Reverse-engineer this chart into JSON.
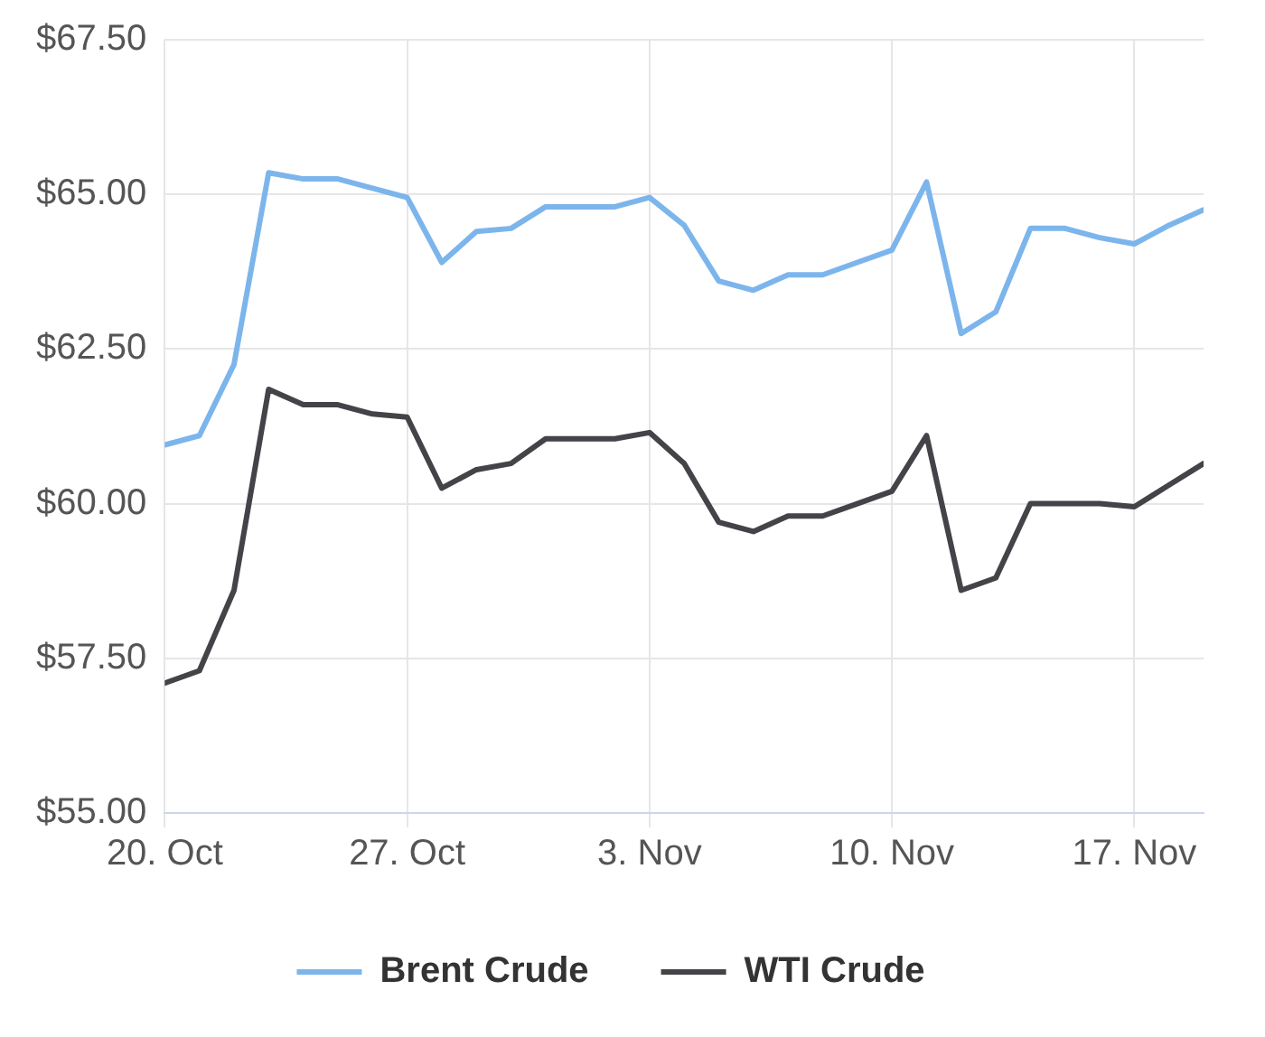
{
  "chart_data": {
    "type": "line",
    "x": [
      "--10-20",
      "--10-21",
      "--10-22",
      "--10-23",
      "--10-24",
      "--10-25",
      "--10-26",
      "--10-27",
      "--10-28",
      "--10-29",
      "--10-30",
      "--10-31",
      "--11-01",
      "--11-02",
      "--11-03",
      "--11-04",
      "--11-05",
      "--11-06",
      "--11-07",
      "--11-08",
      "--11-09",
      "--11-10",
      "--11-11",
      "--11-12",
      "--11-13",
      "--11-14",
      "--11-15",
      "--11-16",
      "--11-17",
      "--11-18",
      "--11-19"
    ],
    "series": [
      {
        "name": "Brent Crude",
        "color": "#7cb5ec",
        "values": [
          60.95,
          61.1,
          62.25,
          65.35,
          65.25,
          65.25,
          65.1,
          64.95,
          63.9,
          64.4,
          64.45,
          64.8,
          64.8,
          64.8,
          64.95,
          64.5,
          63.6,
          63.45,
          63.7,
          63.7,
          63.9,
          64.1,
          65.2,
          62.75,
          63.1,
          64.45,
          64.45,
          64.3,
          64.2,
          64.5,
          64.75
        ]
      },
      {
        "name": "WTI Crude",
        "color": "#434348",
        "values": [
          57.1,
          57.3,
          58.6,
          61.85,
          61.6,
          61.6,
          61.45,
          61.4,
          60.25,
          60.55,
          60.65,
          61.05,
          61.05,
          61.05,
          61.15,
          60.65,
          59.7,
          59.55,
          59.8,
          59.8,
          60.0,
          60.2,
          61.1,
          58.6,
          58.8,
          60.0,
          60.0,
          60.0,
          59.95,
          60.3,
          60.65
        ]
      }
    ],
    "xlim": [
      "--10-20",
      "--11-19"
    ],
    "xticks": [
      {
        "value": "--10-20",
        "label": "20. Oct"
      },
      {
        "value": "--10-27",
        "label": "27. Oct"
      },
      {
        "value": "--11-03",
        "label": "3. Nov"
      },
      {
        "value": "--11-10",
        "label": "10. Nov"
      },
      {
        "value": "--11-17",
        "label": "17. Nov"
      }
    ],
    "ylim": [
      55,
      67.5
    ],
    "yticks": [
      {
        "value": 55,
        "label": "$55.00"
      },
      {
        "value": 57.5,
        "label": "$57.50"
      },
      {
        "value": 60,
        "label": "$60.00"
      },
      {
        "value": 62.5,
        "label": "$62.50"
      },
      {
        "value": 65,
        "label": "$65.00"
      },
      {
        "value": 67.5,
        "label": "$67.50"
      }
    ],
    "grid": true,
    "legend": "bottom",
    "marker": "none",
    "line_style": "solid"
  }
}
